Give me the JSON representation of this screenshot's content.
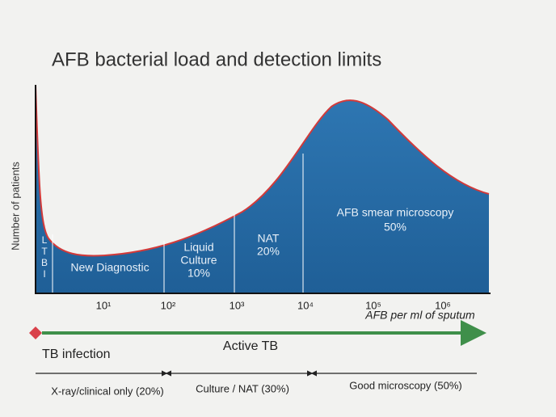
{
  "title": "AFB bacterial load and detection limits",
  "y_axis_label": "Number of patients",
  "x_axis_label": "AFB per ml of sputum",
  "x_ticks": [
    "10¹",
    "10²",
    "10³",
    "10⁴",
    "10⁵",
    "10⁶"
  ],
  "regions": [
    {
      "lines": [
        "L",
        "T",
        "B",
        "I"
      ]
    },
    {
      "lines": [
        "New Diagnostic"
      ]
    },
    {
      "lines": [
        "Liquid",
        "Culture",
        "10%"
      ]
    },
    {
      "lines": [
        "NAT",
        "20%"
      ]
    },
    {
      "lines": [
        "AFB smear microscopy",
        "50%"
      ]
    }
  ],
  "timeline": {
    "start": "TB infection",
    "active": "Active TB"
  },
  "phases": [
    "X-ray/clinical only (20%)",
    "Culture / NAT (30%)",
    "Good microscopy (50%)"
  ]
}
